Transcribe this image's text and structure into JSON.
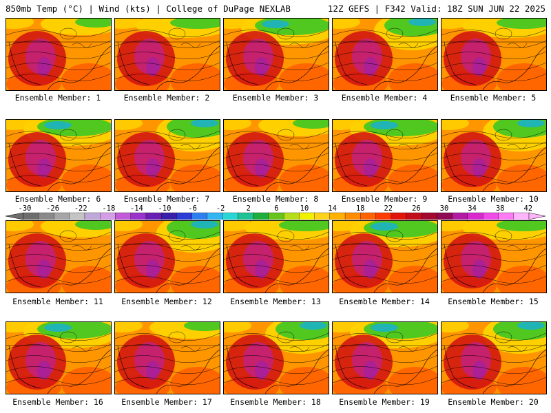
{
  "header": {
    "left": "850mb Temp (°C) | Wind (kts) | College of DuPage NEXLAB",
    "right": "12Z GEFS | F342 Valid: 18Z SUN JUN 22 2025"
  },
  "panels": [
    {
      "label": "Ensemble Member: 1",
      "variant": 0
    },
    {
      "label": "Ensemble Member: 2",
      "variant": 1
    },
    {
      "label": "Ensemble Member: 3",
      "variant": 2
    },
    {
      "label": "Ensemble Member: 4",
      "variant": 3
    },
    {
      "label": "Ensemble Member: 5",
      "variant": 1
    },
    {
      "label": "Ensemble Member: 6",
      "variant": 2
    },
    {
      "label": "Ensemble Member: 7",
      "variant": 3
    },
    {
      "label": "Ensemble Member: 8",
      "variant": 0
    },
    {
      "label": "Ensemble Member: 9",
      "variant": 2
    },
    {
      "label": "Ensemble Member: 10",
      "variant": 3
    },
    {
      "label": "Ensemble Member: 11",
      "variant": 0
    },
    {
      "label": "Ensemble Member: 12",
      "variant": 3
    },
    {
      "label": "Ensemble Member: 13",
      "variant": 1
    },
    {
      "label": "Ensemble Member: 14",
      "variant": 2
    },
    {
      "label": "Ensemble Member: 15",
      "variant": 1
    },
    {
      "label": "Ensemble Member: 16",
      "variant": 2
    },
    {
      "label": "Ensemble Member: 17",
      "variant": 0
    },
    {
      "label": "Ensemble Member: 18",
      "variant": 3
    },
    {
      "label": "Ensemble Member: 19",
      "variant": 2
    },
    {
      "label": "Ensemble Member: 20",
      "variant": 3
    }
  ],
  "colorbar": {
    "labels": [
      "-30",
      "-26",
      "-22",
      "-18",
      "-14",
      "-10",
      "-6",
      "-2",
      "2",
      "6",
      "10",
      "14",
      "18",
      "22",
      "26",
      "30",
      "34",
      "38",
      "42"
    ],
    "colors": [
      "#6e6e6e",
      "#8a8a8a",
      "#a6a6a6",
      "#c4c4c4",
      "#bfa9d8",
      "#d39ee6",
      "#c25bd9",
      "#9933cc",
      "#6a1fb3",
      "#3a1fa8",
      "#2a3bd6",
      "#2f7ef0",
      "#32b5f2",
      "#29d6d6",
      "#1fc294",
      "#1fae3d",
      "#68c41c",
      "#b5dd1a",
      "#f0f000",
      "#ffd21a",
      "#ffb000",
      "#ff8c00",
      "#ff6300",
      "#ff3b00",
      "#e3140a",
      "#c40d1a",
      "#a3082e",
      "#8e0a52",
      "#b31aa3",
      "#d929cc",
      "#f04ae8",
      "#ff7af5",
      "#ffb4fb"
    ]
  },
  "palette": {
    "hot": "#d01010",
    "warm": "#ff5a00",
    "mild": "#ff9600",
    "cool": "#ffd000",
    "cold": "#50c820",
    "colder": "#20b4b4",
    "magenta": "#c0208c"
  }
}
